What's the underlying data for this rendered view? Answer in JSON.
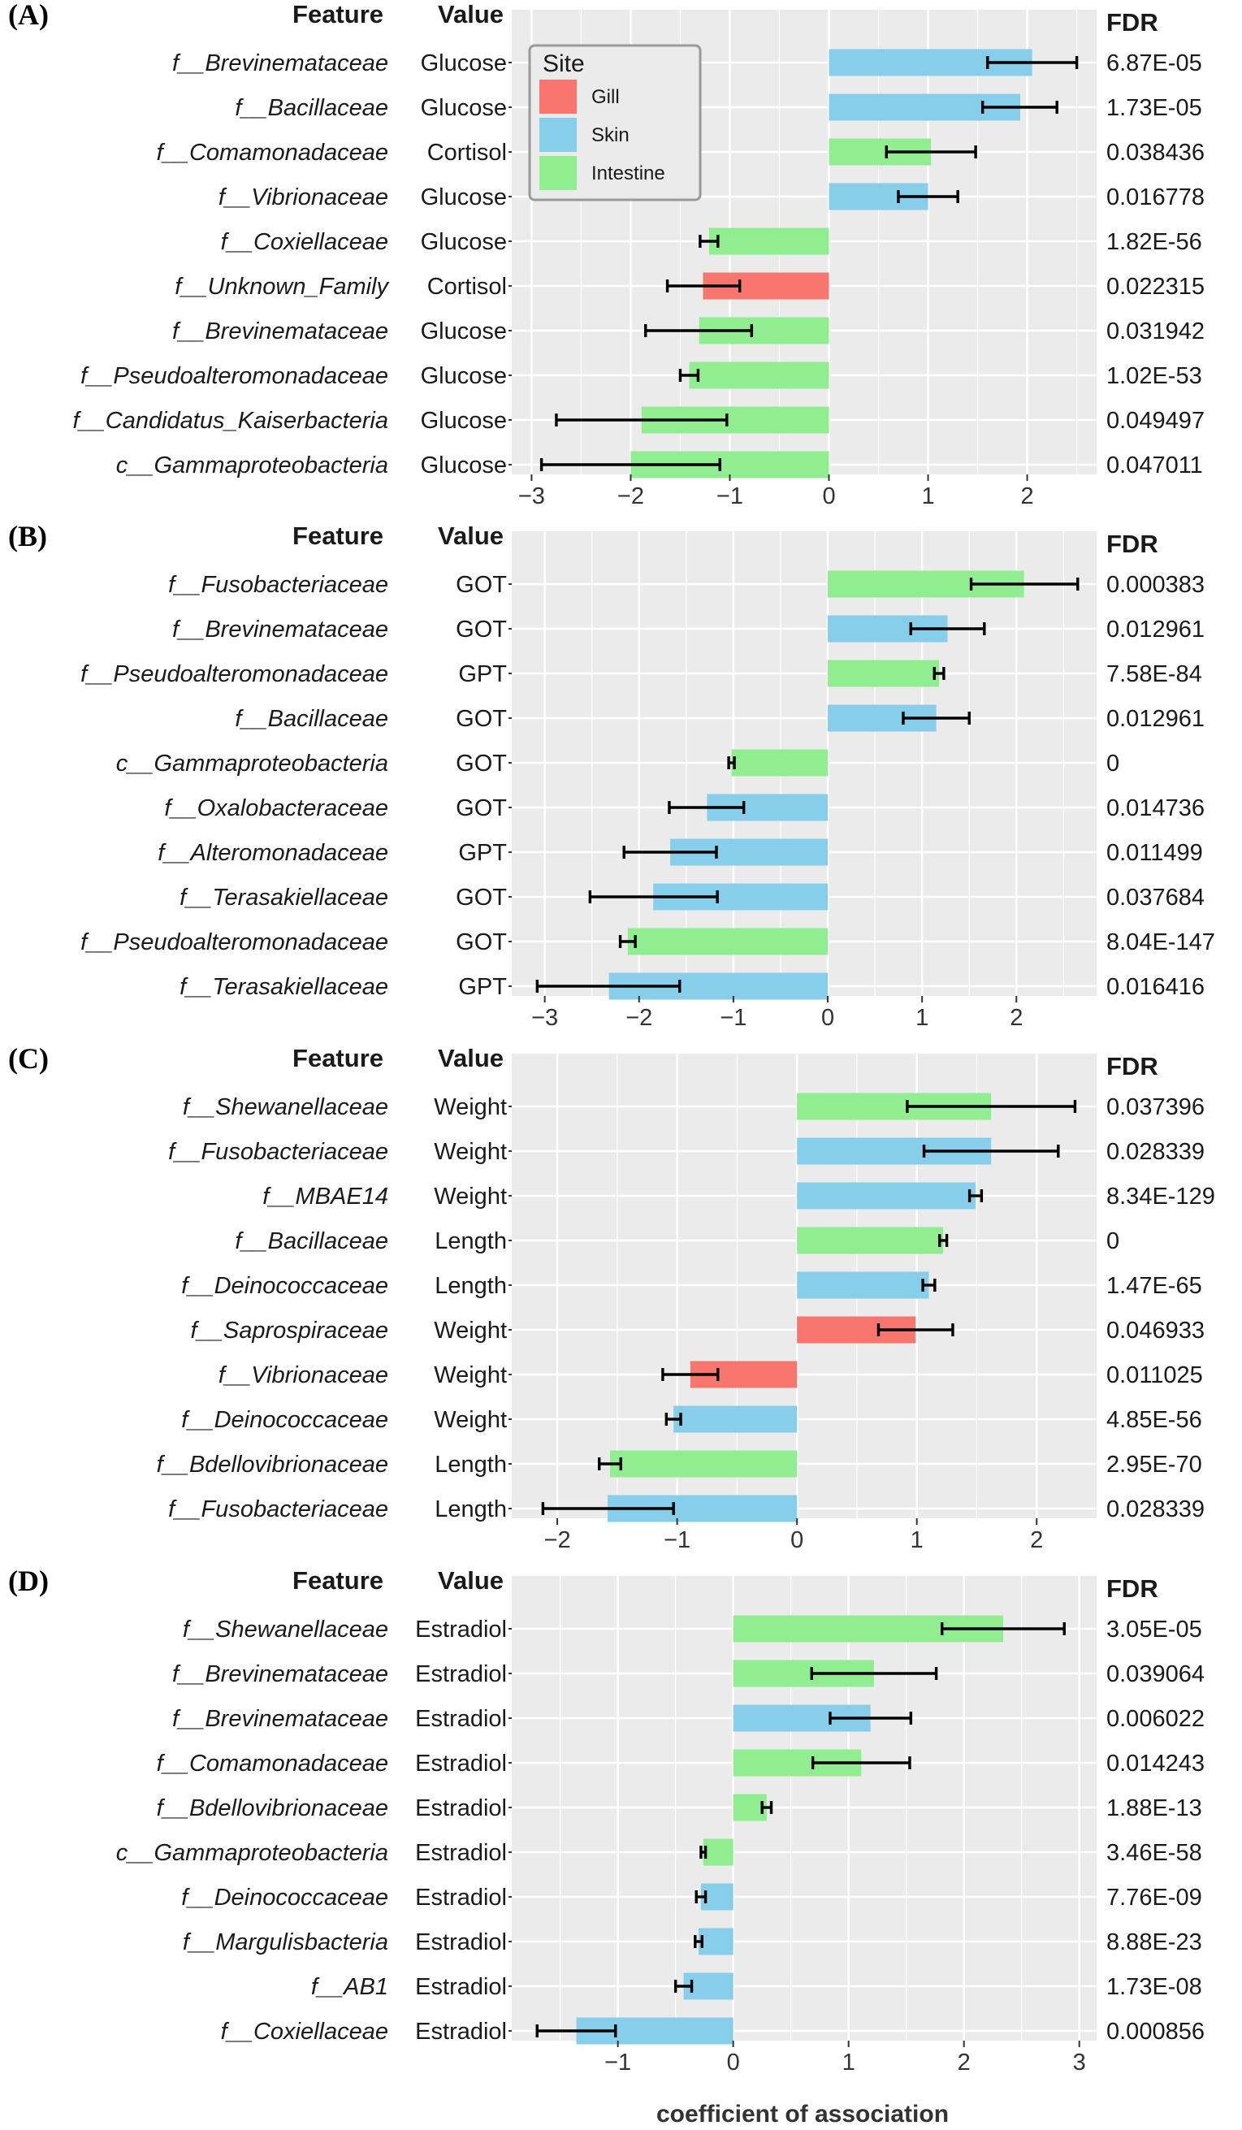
{
  "x_axis_title": "coefficient of association",
  "legend": {
    "title": "Site",
    "items": [
      {
        "label": "Gill",
        "key": "gill"
      },
      {
        "label": "Skin",
        "key": "skin"
      },
      {
        "label": "Intestine",
        "key": "intestine"
      }
    ]
  },
  "colors": {
    "gill": "#F8766D",
    "skin": "#87CEEB",
    "intestine": "#90EE90",
    "panel_bg": "#EBEBEB",
    "grid": "#FFFFFF",
    "text": "#1A1A1A",
    "axis_text": "#333333"
  },
  "chart_data": [
    {
      "type": "bar",
      "panel": "(A)",
      "col_feature": "Feature",
      "col_value": "Value",
      "col_fdr": "FDR",
      "xlim": [
        -3.2,
        2.7
      ],
      "ticks": [
        -3,
        -2,
        -1,
        0,
        1,
        2
      ],
      "rows": [
        {
          "feature": "f__Brevinemataceae",
          "value": "Glucose",
          "site": "skin",
          "coef": 2.05,
          "lo": 1.6,
          "hi": 2.5,
          "fdr": "6.87E-05"
        },
        {
          "feature": "f__Bacillaceae",
          "value": "Glucose",
          "site": "skin",
          "coef": 1.93,
          "lo": 1.55,
          "hi": 2.3,
          "fdr": "1.73E-05"
        },
        {
          "feature": "f__Comamonadaceae",
          "value": "Cortisol",
          "site": "intestine",
          "coef": 1.03,
          "lo": 0.58,
          "hi": 1.48,
          "fdr": "0.038436"
        },
        {
          "feature": "f__Vibrionaceae",
          "value": "Glucose",
          "site": "skin",
          "coef": 1.0,
          "lo": 0.7,
          "hi": 1.3,
          "fdr": "0.016778"
        },
        {
          "feature": "f__Coxiellaceae",
          "value": "Glucose",
          "site": "intestine",
          "coef": -1.21,
          "lo": -1.3,
          "hi": -1.12,
          "fdr": "1.82E-56"
        },
        {
          "feature": "f__Unknown_Family",
          "value": "Cortisol",
          "site": "gill",
          "coef": -1.27,
          "lo": -1.63,
          "hi": -0.9,
          "fdr": "0.022315"
        },
        {
          "feature": "f__Brevinemataceae",
          "value": "Glucose",
          "site": "intestine",
          "coef": -1.31,
          "lo": -1.85,
          "hi": -0.78,
          "fdr": "0.031942"
        },
        {
          "feature": "f__Pseudoalteromonadaceae",
          "value": "Glucose",
          "site": "intestine",
          "coef": -1.41,
          "lo": -1.5,
          "hi": -1.32,
          "fdr": "1.02E-53"
        },
        {
          "feature": "f__Candidatus_Kaiserbacteria",
          "value": "Glucose",
          "site": "intestine",
          "coef": -1.89,
          "lo": -2.75,
          "hi": -1.03,
          "fdr": "0.049497"
        },
        {
          "feature": "c__Gammaproteobacteria",
          "value": "Glucose",
          "site": "intestine",
          "coef": -2.0,
          "lo": -2.9,
          "hi": -1.1,
          "fdr": "0.047011"
        }
      ]
    },
    {
      "type": "bar",
      "panel": "(B)",
      "col_feature": "Feature",
      "col_value": "Value",
      "col_fdr": "FDR",
      "xlim": [
        -3.35,
        2.85
      ],
      "ticks": [
        -3,
        -2,
        -1,
        0,
        1,
        2
      ],
      "rows": [
        {
          "feature": "f__Fusobacteriaceae",
          "value": "GOT",
          "site": "intestine",
          "coef": 2.08,
          "lo": 1.52,
          "hi": 2.65,
          "fdr": "0.000383"
        },
        {
          "feature": "f__Brevinemataceae",
          "value": "GOT",
          "site": "skin",
          "coef": 1.27,
          "lo": 0.88,
          "hi": 1.66,
          "fdr": "0.012961"
        },
        {
          "feature": "f__Pseudoalteromonadaceae",
          "value": "GPT",
          "site": "intestine",
          "coef": 1.18,
          "lo": 1.13,
          "hi": 1.23,
          "fdr": "7.58E-84"
        },
        {
          "feature": "f__Bacillaceae",
          "value": "GOT",
          "site": "skin",
          "coef": 1.15,
          "lo": 0.8,
          "hi": 1.5,
          "fdr": "0.012961"
        },
        {
          "feature": "c__Gammaproteobacteria",
          "value": "GOT",
          "site": "intestine",
          "coef": -1.02,
          "lo": -1.05,
          "hi": -0.99,
          "fdr": "0"
        },
        {
          "feature": "f__Oxalobacteraceae",
          "value": "GOT",
          "site": "skin",
          "coef": -1.28,
          "lo": -1.68,
          "hi": -0.89,
          "fdr": "0.014736"
        },
        {
          "feature": "f__Alteromonadaceae",
          "value": "GPT",
          "site": "skin",
          "coef": -1.67,
          "lo": -2.16,
          "hi": -1.18,
          "fdr": "0.011499"
        },
        {
          "feature": "f__Terasakiellaceae",
          "value": "GOT",
          "site": "skin",
          "coef": -1.85,
          "lo": -2.52,
          "hi": -1.17,
          "fdr": "0.037684"
        },
        {
          "feature": "f__Pseudoalteromonadaceae",
          "value": "GOT",
          "site": "intestine",
          "coef": -2.12,
          "lo": -2.2,
          "hi": -2.04,
          "fdr": "8.04E-147"
        },
        {
          "feature": "f__Terasakiellaceae",
          "value": "GPT",
          "site": "skin",
          "coef": -2.32,
          "lo": -3.08,
          "hi": -1.57,
          "fdr": "0.016416"
        }
      ]
    },
    {
      "type": "bar",
      "panel": "(C)",
      "col_feature": "Feature",
      "col_value": "Value",
      "col_fdr": "FDR",
      "xlim": [
        -2.38,
        2.5
      ],
      "ticks": [
        -2,
        -1,
        0,
        1,
        2
      ],
      "rows": [
        {
          "feature": "f__Shewanellaceae",
          "value": "Weight",
          "site": "intestine",
          "coef": 1.62,
          "lo": 0.92,
          "hi": 2.32,
          "fdr": "0.037396"
        },
        {
          "feature": "f__Fusobacteriaceae",
          "value": "Weight",
          "site": "skin",
          "coef": 1.62,
          "lo": 1.06,
          "hi": 2.18,
          "fdr": "0.028339"
        },
        {
          "feature": "f__MBAE14",
          "value": "Weight",
          "site": "skin",
          "coef": 1.49,
          "lo": 1.44,
          "hi": 1.54,
          "fdr": "8.34E-129"
        },
        {
          "feature": "f__Bacillaceae",
          "value": "Length",
          "site": "intestine",
          "coef": 1.22,
          "lo": 1.19,
          "hi": 1.25,
          "fdr": "0"
        },
        {
          "feature": "f__Deinococcaceae",
          "value": "Length",
          "site": "skin",
          "coef": 1.1,
          "lo": 1.05,
          "hi": 1.15,
          "fdr": "1.47E-65"
        },
        {
          "feature": "f__Saprospiraceae",
          "value": "Weight",
          "site": "gill",
          "coef": 0.99,
          "lo": 0.68,
          "hi": 1.3,
          "fdr": "0.046933"
        },
        {
          "feature": "f__Vibrionaceae",
          "value": "Weight",
          "site": "gill",
          "coef": -0.89,
          "lo": -1.12,
          "hi": -0.66,
          "fdr": "0.011025"
        },
        {
          "feature": "f__Deinococcaceae",
          "value": "Weight",
          "site": "skin",
          "coef": -1.03,
          "lo": -1.09,
          "hi": -0.97,
          "fdr": "4.85E-56"
        },
        {
          "feature": "f__Bdellovibrionaceae",
          "value": "Length",
          "site": "intestine",
          "coef": -1.56,
          "lo": -1.65,
          "hi": -1.47,
          "fdr": "2.95E-70"
        },
        {
          "feature": "f__Fusobacteriaceae",
          "value": "Length",
          "site": "skin",
          "coef": -1.58,
          "lo": -2.12,
          "hi": -1.03,
          "fdr": "0.028339"
        }
      ]
    },
    {
      "type": "bar",
      "panel": "(D)",
      "col_feature": "Feature",
      "col_value": "Value",
      "col_fdr": "FDR",
      "xlim": [
        -1.92,
        3.15
      ],
      "ticks": [
        -1,
        0,
        1,
        2,
        3
      ],
      "rows": [
        {
          "feature": "f__Shewanellaceae",
          "value": "Estradiol",
          "site": "intestine",
          "coef": 2.34,
          "lo": 1.81,
          "hi": 2.87,
          "fdr": "3.05E-05"
        },
        {
          "feature": "f__Brevinemataceae",
          "value": "Estradiol",
          "site": "intestine",
          "coef": 1.22,
          "lo": 0.68,
          "hi": 1.76,
          "fdr": "0.039064"
        },
        {
          "feature": "f__Brevinemataceae",
          "value": "Estradiol",
          "site": "skin",
          "coef": 1.19,
          "lo": 0.84,
          "hi": 1.54,
          "fdr": "0.006022"
        },
        {
          "feature": "f__Comamonadaceae",
          "value": "Estradiol",
          "site": "intestine",
          "coef": 1.11,
          "lo": 0.69,
          "hi": 1.53,
          "fdr": "0.014243"
        },
        {
          "feature": "f__Bdellovibrionaceae",
          "value": "Estradiol",
          "site": "intestine",
          "coef": 0.29,
          "lo": 0.25,
          "hi": 0.33,
          "fdr": "1.88E-13"
        },
        {
          "feature": "c__Gammaproteobacteria",
          "value": "Estradiol",
          "site": "intestine",
          "coef": -0.26,
          "lo": -0.28,
          "hi": -0.24,
          "fdr": "3.46E-58"
        },
        {
          "feature": "f__Deinococcaceae",
          "value": "Estradiol",
          "site": "skin",
          "coef": -0.28,
          "lo": -0.32,
          "hi": -0.24,
          "fdr": "7.76E-09"
        },
        {
          "feature": "f__Margulisbacteria",
          "value": "Estradiol",
          "site": "skin",
          "coef": -0.3,
          "lo": -0.33,
          "hi": -0.27,
          "fdr": "8.88E-23"
        },
        {
          "feature": "f__AB1",
          "value": "Estradiol",
          "site": "skin",
          "coef": -0.43,
          "lo": -0.5,
          "hi": -0.36,
          "fdr": "1.73E-08"
        },
        {
          "feature": "f__Coxiellaceae",
          "value": "Estradiol",
          "site": "skin",
          "coef": -1.36,
          "lo": -1.7,
          "hi": -1.02,
          "fdr": "0.000856"
        }
      ]
    }
  ]
}
